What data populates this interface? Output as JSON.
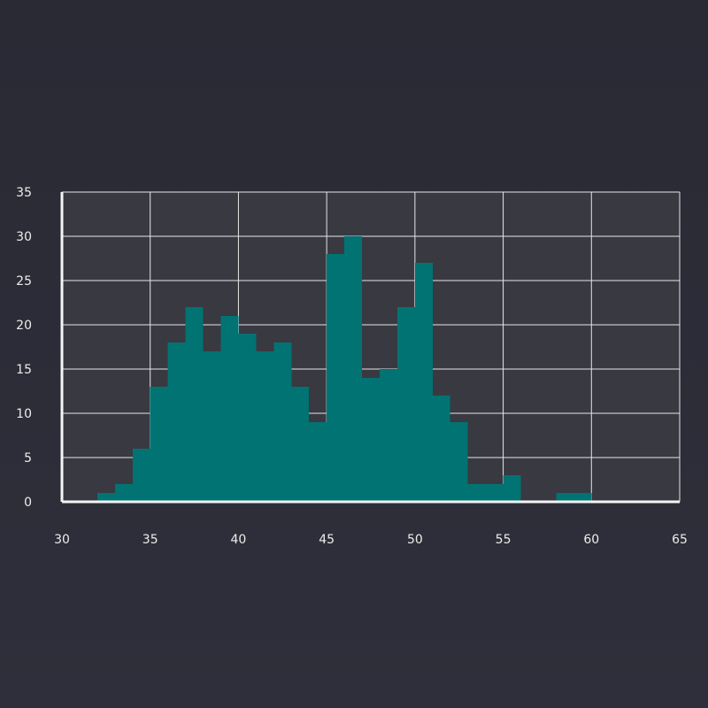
{
  "chart_data": {
    "type": "bar",
    "subtype": "histogram",
    "title": "",
    "xlabel": "",
    "ylabel": "",
    "xlim": [
      30,
      65
    ],
    "ylim": [
      0,
      35
    ],
    "x_ticks": [
      "30",
      "35",
      "40",
      "45",
      "50",
      "55",
      "60",
      "65"
    ],
    "y_ticks": [
      "0",
      "5",
      "10",
      "15",
      "20",
      "25",
      "30",
      "35"
    ],
    "grid": true,
    "bin_width": 1,
    "bins": [
      {
        "start": 32,
        "count": 1
      },
      {
        "start": 33,
        "count": 2
      },
      {
        "start": 34,
        "count": 6
      },
      {
        "start": 35,
        "count": 13
      },
      {
        "start": 36,
        "count": 18
      },
      {
        "start": 37,
        "count": 22
      },
      {
        "start": 38,
        "count": 17
      },
      {
        "start": 39,
        "count": 21
      },
      {
        "start": 40,
        "count": 19
      },
      {
        "start": 41,
        "count": 17
      },
      {
        "start": 42,
        "count": 18
      },
      {
        "start": 43,
        "count": 13
      },
      {
        "start": 44,
        "count": 9
      },
      {
        "start": 45,
        "count": 28
      },
      {
        "start": 46,
        "count": 30
      },
      {
        "start": 47,
        "count": 14
      },
      {
        "start": 48,
        "count": 15
      },
      {
        "start": 49,
        "count": 22
      },
      {
        "start": 50,
        "count": 27
      },
      {
        "start": 51,
        "count": 12
      },
      {
        "start": 52,
        "count": 9
      },
      {
        "start": 53,
        "count": 2
      },
      {
        "start": 54,
        "count": 2
      },
      {
        "start": 55,
        "count": 3
      },
      {
        "start": 58,
        "count": 1
      },
      {
        "start": 59,
        "count": 1
      }
    ],
    "colors": {
      "bar": "#017373",
      "plot_background": "#393941",
      "grid": "#e6e6e6",
      "axis": "#f5f5f5",
      "tick_text": "#ededed"
    }
  }
}
